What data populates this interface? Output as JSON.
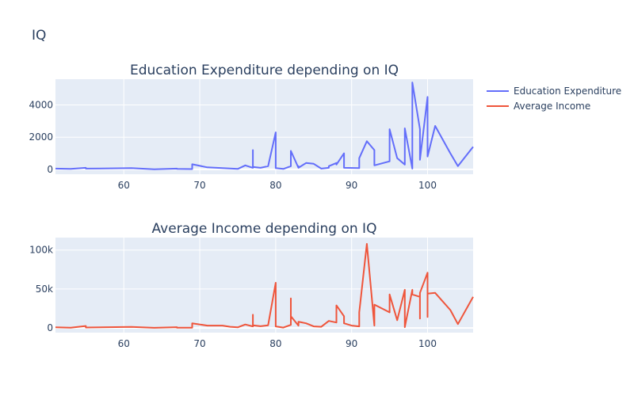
{
  "figure_title": "IQ",
  "chart_data": [
    {
      "type": "line",
      "title": "Education Expenditure depending on IQ",
      "xlabel": "",
      "ylabel": "",
      "xlim": [
        51,
        106
      ],
      "ylim": [
        -300,
        5600
      ],
      "xticks": [
        60,
        70,
        80,
        90,
        100
      ],
      "xtick_labels": [
        "60",
        "70",
        "80",
        "90",
        "100"
      ],
      "yticks": [
        0,
        2000,
        4000
      ],
      "ytick_labels": [
        "0",
        "2000",
        "4000"
      ],
      "grid": true,
      "series": [
        {
          "name": "Education Expenditure",
          "color": "#636efa",
          "x": [
            51,
            53,
            55,
            55,
            61,
            64,
            67,
            67,
            69,
            69,
            71,
            75,
            76,
            77,
            77,
            77,
            78,
            79,
            80,
            80,
            81,
            82,
            82,
            83,
            83,
            83,
            84,
            85,
            86,
            87,
            87,
            88,
            88,
            89,
            89,
            89,
            91,
            91,
            92,
            93,
            93,
            95,
            95,
            96,
            97,
            97,
            98,
            98,
            99,
            99,
            99,
            100,
            100,
            100,
            101,
            103,
            104,
            106
          ],
          "values": [
            50,
            30,
            100,
            50,
            80,
            10,
            50,
            30,
            20,
            320,
            130,
            30,
            250,
            100,
            1200,
            150,
            100,
            200,
            2300,
            80,
            30,
            200,
            1150,
            100,
            200,
            100,
            400,
            350,
            50,
            100,
            200,
            400,
            300,
            1000,
            300,
            100,
            80,
            700,
            1750,
            1200,
            250,
            500,
            2500,
            700,
            300,
            2550,
            50,
            5400,
            2500,
            2000,
            600,
            4500,
            2200,
            800,
            2700,
            1000,
            200,
            1400
          ]
        }
      ]
    },
    {
      "type": "line",
      "title": "Average Income depending on IQ",
      "xlabel": "",
      "ylabel": "",
      "xlim": [
        51,
        106
      ],
      "ylim": [
        -6000,
        116000
      ],
      "xticks": [
        60,
        70,
        80,
        90,
        100
      ],
      "xtick_labels": [
        "60",
        "70",
        "80",
        "90",
        "100"
      ],
      "yticks": [
        0,
        50000,
        100000
      ],
      "ytick_labels": [
        "0",
        "50k",
        "100k"
      ],
      "grid": true,
      "series": [
        {
          "name": "Average Income",
          "color": "#ef553b",
          "x": [
            51,
            53,
            55,
            55,
            61,
            64,
            67,
            67,
            69,
            69,
            71,
            73,
            74,
            75,
            76,
            77,
            77,
            77,
            78,
            79,
            80,
            80,
            81,
            82,
            82,
            82,
            83,
            83,
            84,
            85,
            86,
            87,
            88,
            88,
            89,
            89,
            90,
            91,
            91,
            92,
            93,
            93,
            95,
            95,
            96,
            97,
            97,
            98,
            98,
            99,
            99,
            99,
            100,
            100,
            100,
            101,
            103,
            104,
            106
          ],
          "values": [
            800,
            400,
            2500,
            600,
            1400,
            200,
            1000,
            400,
            300,
            6000,
            3000,
            3000,
            1500,
            800,
            4500,
            2000,
            17000,
            3500,
            2200,
            3500,
            58000,
            2000,
            500,
            4000,
            38000,
            15000,
            3000,
            8000,
            6000,
            2000,
            1500,
            9000,
            7000,
            29000,
            15000,
            6000,
            3000,
            2000,
            20000,
            108000,
            3000,
            30000,
            20000,
            43000,
            10000,
            49000,
            1000,
            49000,
            43000,
            40000,
            12000,
            45000,
            71000,
            14000,
            44000,
            45000,
            23000,
            5000,
            40000
          ]
        }
      ]
    }
  ],
  "legend": {
    "placement": "top-right",
    "items": [
      {
        "label": "Education Expenditure",
        "color": "#636efa"
      },
      {
        "label": "Average Income",
        "color": "#ef553b"
      }
    ]
  },
  "colors": {
    "plot_background": "#e5ecf6",
    "grid": "#ffffff",
    "text": "#2a3f5f"
  }
}
